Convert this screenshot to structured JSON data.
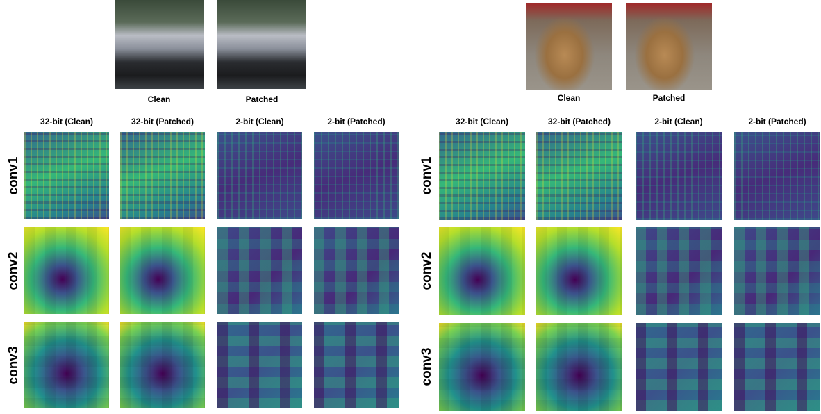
{
  "panels": [
    {
      "inputs": [
        "Clean",
        "Patched"
      ],
      "columns": [
        "32-bit (Clean)",
        "32-bit (Patched)",
        "2-bit (Clean)",
        "2-bit (Patched)"
      ],
      "rows": [
        "conv1",
        "conv2",
        "conv3"
      ]
    },
    {
      "inputs": [
        "Clean",
        "Patched"
      ],
      "columns": [
        "32-bit (Clean)",
        "32-bit (Patched)",
        "2-bit (Clean)",
        "2-bit (Patched)"
      ],
      "rows": [
        "conv1",
        "conv2",
        "conv3"
      ]
    }
  ]
}
